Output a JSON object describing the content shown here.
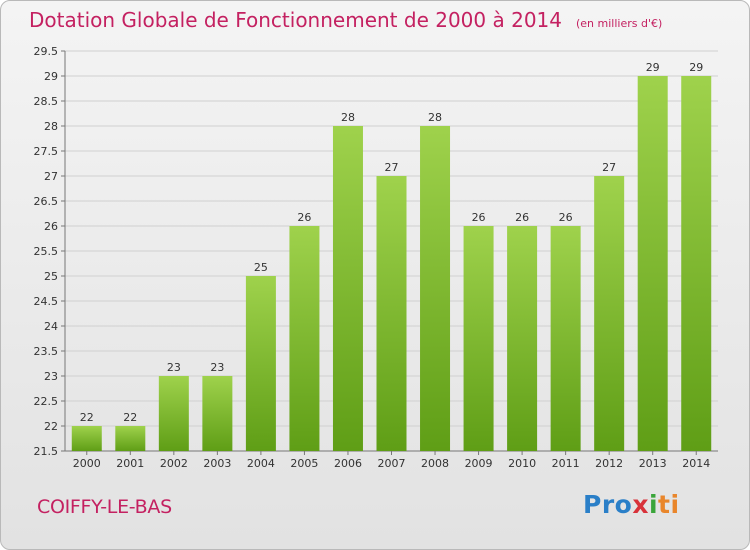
{
  "chart_data": {
    "type": "bar",
    "title": "Dotation Globale de Fonctionnement de 2000 à 2014",
    "subtitle": "(en milliers d'€)",
    "categories": [
      "2000",
      "2001",
      "2002",
      "2003",
      "2004",
      "2005",
      "2006",
      "2007",
      "2008",
      "2009",
      "2010",
      "2011",
      "2012",
      "2013",
      "2014"
    ],
    "values": [
      22,
      22,
      23,
      23,
      25,
      26,
      28,
      27,
      28,
      26,
      26,
      26,
      27,
      29,
      29
    ],
    "data_labels": [
      "22",
      "22",
      "23",
      "23",
      "25",
      "26",
      "28",
      "27",
      "28",
      "26",
      "26",
      "26",
      "27",
      "29",
      "29"
    ],
    "ylim": [
      21.5,
      29.5
    ],
    "yticks": [
      21.5,
      22,
      22.5,
      23,
      23.5,
      24,
      24.5,
      25,
      25.5,
      26,
      26.5,
      27,
      27.5,
      28,
      28.5,
      29,
      29.5
    ],
    "ytick_labels": [
      "21.5",
      "22",
      "22.5",
      "23",
      "23.5",
      "24",
      "24.5",
      "25",
      "25.5",
      "26",
      "26.5",
      "27",
      "27.5",
      "28",
      "28.5",
      "29",
      "29.5"
    ],
    "xlabel": "",
    "ylabel": "",
    "grid": true,
    "colors": {
      "bar_top": "#9fd24c",
      "bar_bottom": "#5f9e16",
      "grid": "#d0d0d0",
      "title": "#c42161"
    }
  },
  "place_name": "COIFFY-LE-BAS",
  "logo": {
    "part1": "Pro",
    "part2": "x",
    "part3": "i",
    "part4": "ti"
  }
}
